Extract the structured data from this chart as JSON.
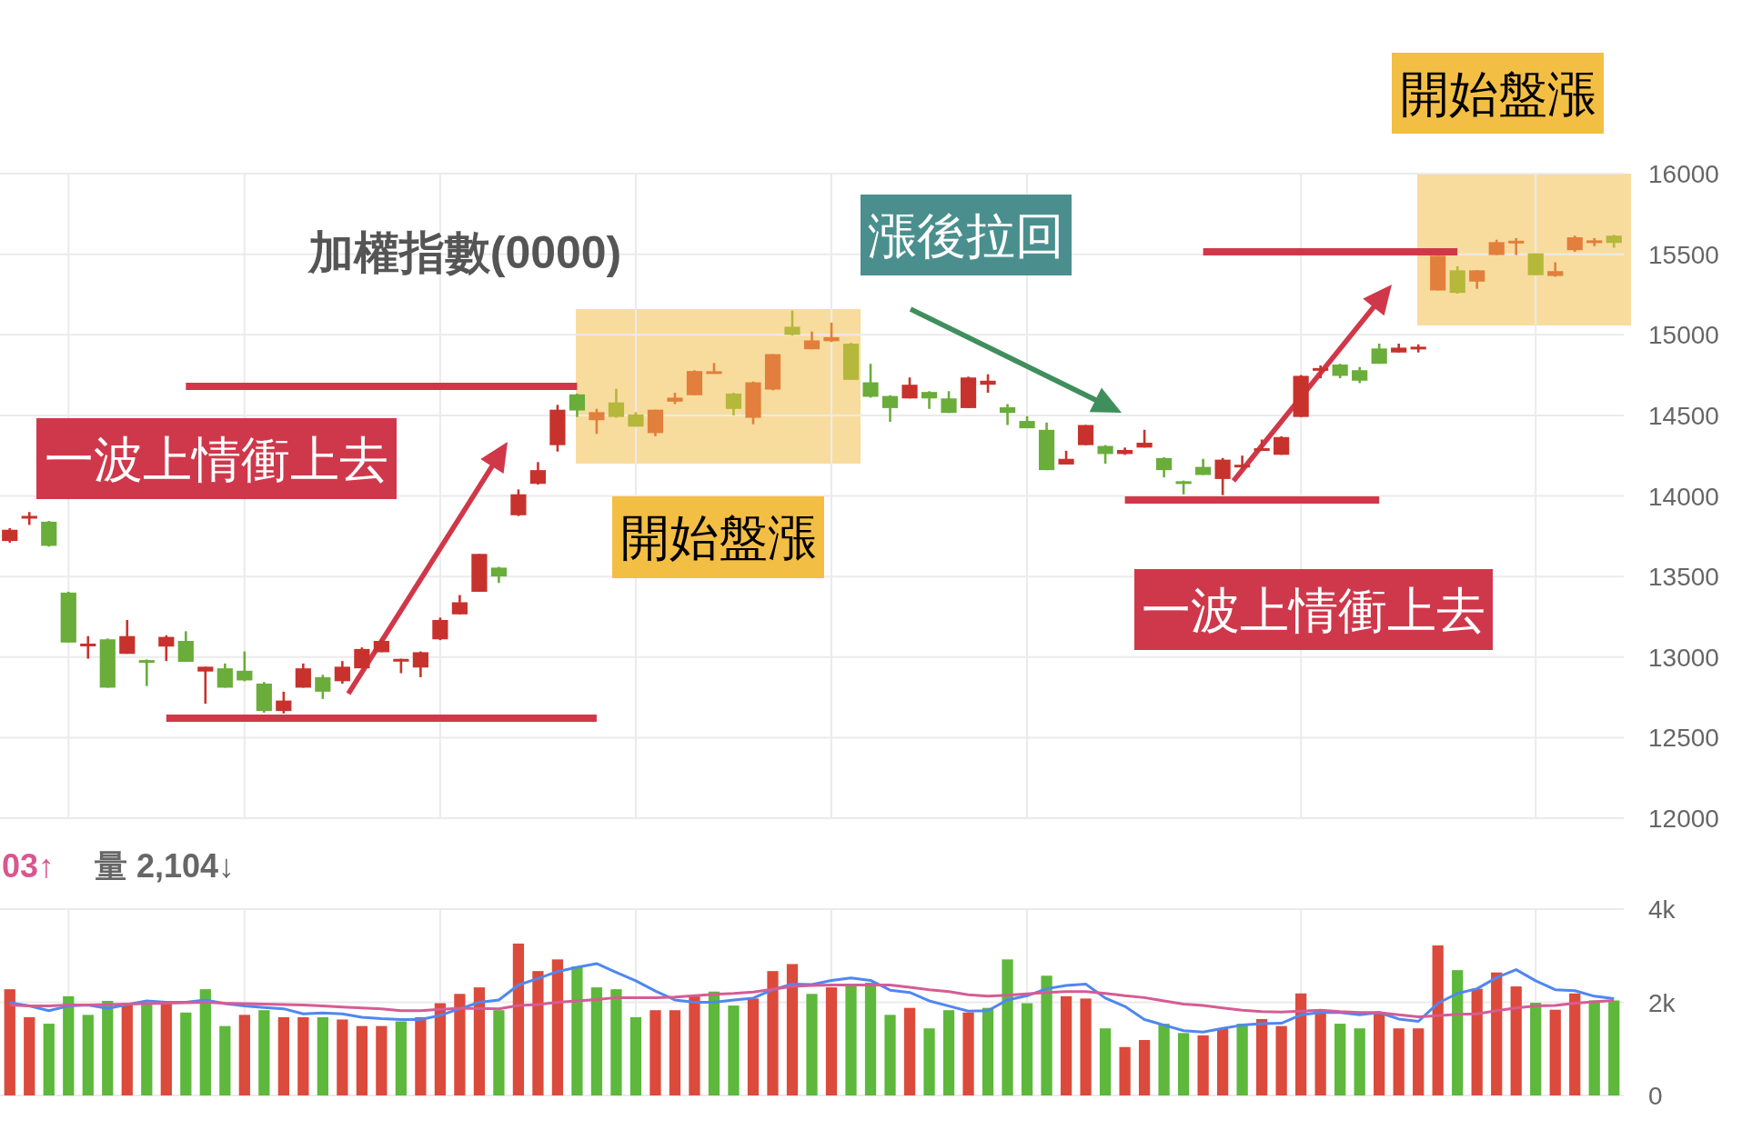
{
  "chart_data": [
    {
      "type": "candlestick",
      "title": "加權指數(0000)",
      "categories": [
        null,
        null,
        null,
        null,
        null,
        null,
        null,
        null,
        null,
        null,
        null,
        null,
        null,
        null,
        null,
        null,
        null,
        null,
        null,
        null,
        null,
        null,
        null,
        null,
        null,
        null,
        null,
        null,
        null,
        null,
        null,
        null,
        null,
        null,
        null,
        null,
        null,
        null,
        null,
        null,
        null,
        null,
        null,
        null,
        null,
        null,
        null,
        null,
        null,
        null,
        null,
        null,
        null,
        null,
        null,
        null,
        null,
        null,
        null,
        null,
        null,
        null,
        null,
        null,
        null,
        null,
        null,
        null,
        null,
        null,
        null,
        null,
        null,
        null,
        null,
        null,
        null,
        null,
        null,
        null,
        null,
        null,
        null
      ],
      "ohlc": [
        [
          13720,
          13800,
          13710,
          13790
        ],
        [
          13860,
          13900,
          13820,
          13875
        ],
        [
          13840,
          13845,
          13685,
          13690
        ],
        [
          13400,
          13405,
          13090,
          13090
        ],
        [
          13070,
          13130,
          12990,
          13080
        ],
        [
          13110,
          13115,
          12810,
          12810
        ],
        [
          13020,
          13230,
          13020,
          13130
        ],
        [
          12980,
          12985,
          12820,
          12965
        ],
        [
          13065,
          13135,
          12975,
          13125
        ],
        [
          13100,
          13160,
          12970,
          12970
        ],
        [
          12910,
          12940,
          12710,
          12940
        ],
        [
          12930,
          12960,
          12810,
          12810
        ],
        [
          12915,
          13035,
          12850,
          12855
        ],
        [
          12835,
          12845,
          12655,
          12665
        ],
        [
          12665,
          12785,
          12650,
          12730
        ],
        [
          12810,
          12960,
          12810,
          12930
        ],
        [
          12875,
          12890,
          12740,
          12785
        ],
        [
          12850,
          12975,
          12835,
          12940
        ],
        [
          12930,
          13060,
          12930,
          13050
        ],
        [
          13030,
          13110,
          13030,
          13100
        ],
        [
          12975,
          12990,
          12900,
          12985
        ],
        [
          12935,
          13035,
          12875,
          13030
        ],
        [
          13110,
          13245,
          13105,
          13230
        ],
        [
          13265,
          13385,
          13265,
          13340
        ],
        [
          13405,
          13640,
          13405,
          13640
        ],
        [
          13555,
          13560,
          13460,
          13500
        ],
        [
          13880,
          14040,
          13875,
          14010
        ],
        [
          14075,
          14210,
          14070,
          14160
        ],
        [
          14315,
          14565,
          14275,
          14535
        ],
        [
          14630,
          14635,
          14490,
          14530
        ],
        [
          14470,
          14540,
          14385,
          14520
        ],
        [
          14580,
          14665,
          14485,
          14490
        ],
        [
          14505,
          14520,
          14430,
          14430
        ],
        [
          14390,
          14535,
          14370,
          14535
        ],
        [
          14585,
          14640,
          14570,
          14610
        ],
        [
          14625,
          14780,
          14625,
          14775
        ],
        [
          14760,
          14825,
          14760,
          14770
        ],
        [
          14635,
          14640,
          14500,
          14540
        ],
        [
          14485,
          14710,
          14445,
          14705
        ],
        [
          14660,
          14880,
          14655,
          14880
        ],
        [
          15050,
          15150,
          14995,
          15000
        ],
        [
          14910,
          15020,
          14910,
          14965
        ],
        [
          14960,
          15075,
          14955,
          14985
        ],
        [
          14945,
          14950,
          14720,
          14720
        ],
        [
          14705,
          14820,
          14610,
          14615
        ],
        [
          14620,
          14625,
          14460,
          14545
        ],
        [
          14605,
          14735,
          14605,
          14690
        ],
        [
          14645,
          14650,
          14540,
          14605
        ],
        [
          14605,
          14650,
          14515,
          14515
        ],
        [
          14545,
          14740,
          14545,
          14735
        ],
        [
          14690,
          14755,
          14640,
          14715
        ],
        [
          14550,
          14570,
          14440,
          14515
        ],
        [
          14465,
          14495,
          14420,
          14420
        ],
        [
          14410,
          14455,
          14160,
          14160
        ],
        [
          14195,
          14280,
          14195,
          14230
        ],
        [
          14315,
          14440,
          14315,
          14440
        ],
        [
          14310,
          14315,
          14200,
          14260
        ],
        [
          14260,
          14300,
          14255,
          14285
        ],
        [
          14300,
          14410,
          14300,
          14330
        ],
        [
          14235,
          14240,
          14115,
          14160
        ],
        [
          14090,
          14095,
          14010,
          14075
        ],
        [
          14180,
          14230,
          14130,
          14130
        ],
        [
          14105,
          14235,
          14005,
          14225
        ],
        [
          14180,
          14250,
          14165,
          14190
        ],
        [
          14280,
          14350,
          14280,
          14295
        ],
        [
          14255,
          14370,
          14255,
          14365
        ],
        [
          14490,
          14750,
          14490,
          14745
        ],
        [
          14780,
          14810,
          14730,
          14790
        ],
        [
          14815,
          14820,
          14730,
          14745
        ],
        [
          14780,
          14800,
          14700,
          14715
        ],
        [
          14915,
          14945,
          14820,
          14820
        ],
        [
          14890,
          14945,
          14890,
          14920
        ],
        [
          14910,
          14940,
          14890,
          14925
        ],
        [
          15275,
          15490,
          15275,
          15490
        ],
        [
          15400,
          15425,
          15255,
          15260
        ],
        [
          15330,
          15400,
          15285,
          15400
        ],
        [
          15495,
          15590,
          15495,
          15575
        ],
        [
          15570,
          15600,
          15495,
          15580
        ],
        [
          15505,
          15505,
          15370,
          15370
        ],
        [
          15365,
          15450,
          15360,
          15395
        ],
        [
          15525,
          15615,
          15515,
          15605
        ],
        [
          15575,
          15600,
          15550,
          15580
        ],
        [
          15615,
          15620,
          15540,
          15570
        ]
      ],
      "colors": [
        "#c8322c",
        "#c8322c",
        "#6aad3a",
        "#6aad3a",
        "#c8322c",
        "#6aad3a",
        "#c8322c",
        "#6aad3a",
        "#c8322c",
        "#6aad3a",
        "#c8322c",
        "#6aad3a",
        "#6aad3a",
        "#6aad3a",
        "#c8322c",
        "#c8322c",
        "#6aad3a",
        "#c8322c",
        "#c8322c",
        "#c8322c",
        "#c8322c",
        "#c8322c",
        "#c8322c",
        "#c8322c",
        "#c8322c",
        "#6aad3a",
        "#c8322c",
        "#c8322c",
        "#c8322c",
        "#6aad3a",
        "#e27f3c",
        "#b5b83b",
        "#b5b83b",
        "#e27f3c",
        "#e27f3c",
        "#e27f3c",
        "#e27f3c",
        "#b5b83b",
        "#e27f3c",
        "#e27f3c",
        "#b5b83b",
        "#e27f3c",
        "#e27f3c",
        "#b5b83b",
        "#6aad3a",
        "#6aad3a",
        "#c8322c",
        "#6aad3a",
        "#6aad3a",
        "#c8322c",
        "#c8322c",
        "#6aad3a",
        "#6aad3a",
        "#6aad3a",
        "#c8322c",
        "#c8322c",
        "#6aad3a",
        "#c8322c",
        "#c8322c",
        "#6aad3a",
        "#6aad3a",
        "#6aad3a",
        "#c8322c",
        "#c8322c",
        "#c8322c",
        "#c8322c",
        "#c8322c",
        "#c8322c",
        "#6aad3a",
        "#6aad3a",
        "#6aad3a",
        "#c8322c",
        "#c8322c",
        "#e27f3c",
        "#b5b83b",
        "#e27f3c",
        "#e27f3c",
        "#e27f3c",
        "#b5b83b",
        "#e27f3c",
        "#e27f3c",
        "#e27f3c",
        "#b5b83b"
      ],
      "series": [
        {
          "type": "line",
          "color": "#d0384a",
          "values": [
            null,
            null,
            null,
            null,
            null,
            null,
            null,
            null,
            null,
            14680,
            14680,
            14680,
            14680,
            14680,
            14680,
            14680,
            14680,
            14680,
            14680,
            14680,
            14680,
            14680,
            14680,
            14680,
            14680,
            14680,
            14680,
            14680,
            14680,
            14680,
            null,
            null,
            null,
            null,
            null,
            null,
            null,
            null,
            null,
            null,
            null,
            null,
            null,
            null,
            null,
            null,
            null,
            null,
            null,
            null,
            null,
            null,
            null,
            null,
            null,
            null,
            null,
            null,
            null,
            null,
            null,
            null,
            null,
            null,
            null,
            null,
            null,
            null,
            null,
            null,
            null,
            null,
            null,
            null,
            null,
            null,
            null,
            null,
            null,
            null,
            null,
            null,
            null
          ]
        },
        {
          "type": "line",
          "color": "#d0384a",
          "values": [
            null,
            null,
            null,
            null,
            null,
            null,
            null,
            null,
            12620,
            12620,
            12620,
            12620,
            12620,
            12620,
            12620,
            12620,
            12620,
            12620,
            12620,
            12620,
            12620,
            12620,
            12620,
            12620,
            12620,
            12620,
            12620,
            12620,
            12620,
            12620,
            12620,
            null,
            null,
            null,
            null,
            null,
            null,
            null,
            null,
            null,
            null,
            null,
            null,
            null,
            null,
            null,
            null,
            null,
            null,
            null,
            null,
            null,
            null,
            null,
            null,
            null,
            null,
            null,
            null,
            null,
            null,
            null,
            null,
            null,
            null,
            null,
            null,
            null,
            null,
            null,
            null,
            null,
            null,
            null,
            null,
            null,
            null,
            null,
            null,
            null,
            null,
            null,
            null
          ]
        },
        {
          "type": "line",
          "color": "#d0384a",
          "values": [
            null,
            null,
            null,
            null,
            null,
            null,
            null,
            null,
            null,
            null,
            null,
            null,
            null,
            null,
            null,
            null,
            null,
            null,
            null,
            null,
            null,
            null,
            null,
            null,
            null,
            null,
            null,
            null,
            null,
            null,
            null,
            null,
            null,
            null,
            null,
            null,
            null,
            null,
            null,
            null,
            null,
            null,
            null,
            null,
            null,
            null,
            null,
            null,
            null,
            null,
            null,
            null,
            null,
            null,
            null,
            null,
            null,
            13975,
            13975,
            13975,
            13975,
            13975,
            13975,
            13975,
            13975,
            13975,
            13975,
            13975,
            13975,
            13975,
            13975,
            null,
            null,
            null,
            null,
            null,
            null,
            null,
            null,
            null,
            null,
            null,
            null
          ]
        },
        {
          "type": "line",
          "color": "#d0384a",
          "values": [
            null,
            null,
            null,
            null,
            null,
            null,
            null,
            null,
            null,
            null,
            null,
            null,
            null,
            null,
            null,
            null,
            null,
            null,
            null,
            null,
            null,
            null,
            null,
            null,
            null,
            null,
            null,
            null,
            null,
            null,
            null,
            null,
            null,
            null,
            null,
            null,
            null,
            null,
            null,
            null,
            null,
            null,
            null,
            null,
            null,
            null,
            null,
            null,
            null,
            null,
            null,
            null,
            null,
            null,
            null,
            null,
            null,
            null,
            null,
            null,
            null,
            15515,
            15515,
            15515,
            15515,
            15515,
            15515,
            15515,
            15515,
            15515,
            15515,
            15515,
            15515,
            15515,
            15515,
            null,
            null,
            null,
            null,
            null,
            null,
            null,
            null
          ]
        }
      ],
      "ylim": [
        12000,
        16000
      ],
      "yticks": [
        12000,
        12500,
        13000,
        13500,
        14000,
        14500,
        15000,
        15500,
        16000
      ],
      "grid": true,
      "tick_labels": "y",
      "annotations": [
        "開始盤漲",
        "漲後拉回",
        "一波上情衝上去",
        "開始盤漲",
        "一波上情衝上去"
      ]
    },
    {
      "type": "bar",
      "categories": [
        null,
        null,
        null,
        null,
        null,
        null,
        null,
        null,
        null,
        null,
        null,
        null,
        null,
        null,
        null,
        null,
        null,
        null,
        null,
        null,
        null,
        null,
        null,
        null,
        null,
        null,
        null,
        null,
        null,
        null,
        null,
        null,
        null,
        null,
        null,
        null,
        null,
        null,
        null,
        null,
        null,
        null,
        null,
        null,
        null,
        null,
        null,
        null,
        null,
        null,
        null,
        null,
        null,
        null,
        null,
        null,
        null,
        null,
        null,
        null,
        null,
        null,
        null,
        null,
        null,
        null,
        null,
        null,
        null,
        null,
        null,
        null,
        null,
        null,
        null,
        null,
        null,
        null,
        null,
        null,
        null,
        null,
        null
      ],
      "series": [
        {
          "values": [
            2280,
            1680,
            1540,
            2130,
            1730,
            2030,
            1980,
            1980,
            1980,
            1780,
            2280,
            1490,
            1730,
            1830,
            1680,
            1680,
            1680,
            1630,
            1490,
            1490,
            1590,
            1680,
            1980,
            2180,
            2320,
            1830,
            3260,
            2670,
            2920,
            2770,
            2320,
            2280,
            1680,
            1830,
            1830,
            2130,
            2230,
            1930,
            2080,
            2670,
            2820,
            2180,
            2320,
            2370,
            2420,
            1730,
            1880,
            1440,
            1830,
            1780,
            1880,
            2920,
            1980,
            2570,
            2130,
            2080,
            1440,
            1040,
            1190,
            1540,
            1340,
            1290,
            1430,
            1540,
            1640,
            1490,
            2190,
            1760,
            1540,
            1440,
            1760,
            1440,
            1440,
            3220,
            2690,
            2290,
            2640,
            2340,
            1990,
            1840,
            2190,
            2040,
            2040
          ],
          "colors": [
            "#dc4a3c",
            "#dc4a3c",
            "#5db83b",
            "#5db83b",
            "#5db83b",
            "#5db83b",
            "#dc4a3c",
            "#5db83b",
            "#dc4a3c",
            "#5db83b",
            "#5db83b",
            "#5db83b",
            "#dc4a3c",
            "#5db83b",
            "#dc4a3c",
            "#dc4a3c",
            "#5db83b",
            "#dc4a3c",
            "#dc4a3c",
            "#dc4a3c",
            "#5db83b",
            "#dc4a3c",
            "#dc4a3c",
            "#dc4a3c",
            "#dc4a3c",
            "#5db83b",
            "#dc4a3c",
            "#dc4a3c",
            "#dc4a3c",
            "#5db83b",
            "#5db83b",
            "#5db83b",
            "#5db83b",
            "#dc4a3c",
            "#dc4a3c",
            "#dc4a3c",
            "#5db83b",
            "#5db83b",
            "#dc4a3c",
            "#dc4a3c",
            "#dc4a3c",
            "#5db83b",
            "#dc4a3c",
            "#5db83b",
            "#5db83b",
            "#5db83b",
            "#dc4a3c",
            "#5db83b",
            "#5db83b",
            "#dc4a3c",
            "#5db83b",
            "#5db83b",
            "#5db83b",
            "#5db83b",
            "#dc4a3c",
            "#dc4a3c",
            "#5db83b",
            "#dc4a3c",
            "#dc4a3c",
            "#5db83b",
            "#5db83b",
            "#dc4a3c",
            "#dc4a3c",
            "#5db83b",
            "#dc4a3c",
            "#dc4a3c",
            "#dc4a3c",
            "#dc4a3c",
            "#5db83b",
            "#5db83b",
            "#dc4a3c",
            "#dc4a3c",
            "#dc4a3c",
            "#dc4a3c",
            "#5db83b",
            "#dc4a3c",
            "#dc4a3c",
            "#dc4a3c",
            "#5db83b",
            "#dc4a3c",
            "#dc4a3c",
            "#5db83b",
            "#5db83b"
          ]
        },
        {
          "type": "line",
          "color": "#5087f0",
          "values": [
            1990,
            1920,
            1820,
            1920,
            1940,
            1870,
            1950,
            2030,
            2000,
            2000,
            2050,
            1970,
            1920,
            1890,
            1860,
            1750,
            1770,
            1750,
            1680,
            1650,
            1630,
            1630,
            1720,
            1860,
            2000,
            2050,
            2370,
            2510,
            2660,
            2750,
            2830,
            2640,
            2460,
            2240,
            2050,
            2000,
            2000,
            2050,
            2090,
            2270,
            2390,
            2380,
            2470,
            2520,
            2470,
            2260,
            2210,
            2030,
            1920,
            1810,
            1820,
            2050,
            2140,
            2290,
            2360,
            2390,
            2090,
            1910,
            1630,
            1510,
            1390,
            1360,
            1440,
            1510,
            1540,
            1550,
            1730,
            1780,
            1780,
            1730,
            1780,
            1640,
            1590,
            1980,
            2190,
            2290,
            2530,
            2700,
            2460,
            2270,
            2250,
            2130,
            2080
          ]
        },
        {
          "type": "line",
          "color": "#d65c94",
          "values": [
            1940,
            1920,
            1920,
            1940,
            1940,
            1950,
            1960,
            1970,
            1980,
            1990,
            2000,
            1980,
            1970,
            1960,
            1950,
            1940,
            1920,
            1900,
            1880,
            1860,
            1820,
            1820,
            1850,
            1870,
            1870,
            1860,
            1930,
            1950,
            2000,
            2030,
            2060,
            2100,
            2100,
            2100,
            2110,
            2140,
            2170,
            2190,
            2220,
            2280,
            2340,
            2360,
            2370,
            2370,
            2370,
            2370,
            2320,
            2270,
            2230,
            2160,
            2130,
            2150,
            2180,
            2210,
            2230,
            2230,
            2190,
            2140,
            2100,
            2030,
            1960,
            1930,
            1880,
            1830,
            1800,
            1790,
            1810,
            1830,
            1800,
            1780,
            1780,
            1730,
            1690,
            1710,
            1740,
            1750,
            1820,
            1880,
            1920,
            1930,
            1980,
            2010,
            2040
          ]
        }
      ],
      "ylim": [
        0,
        4000
      ],
      "yticks": [
        0,
        {
          "value": 2000,
          "label": "2k"
        },
        {
          "value": 4000,
          "label": "4k"
        }
      ],
      "grid": true,
      "tick_labels": "y",
      "annotations": [
        "03↑",
        "量 2,104↓"
      ]
    }
  ]
}
